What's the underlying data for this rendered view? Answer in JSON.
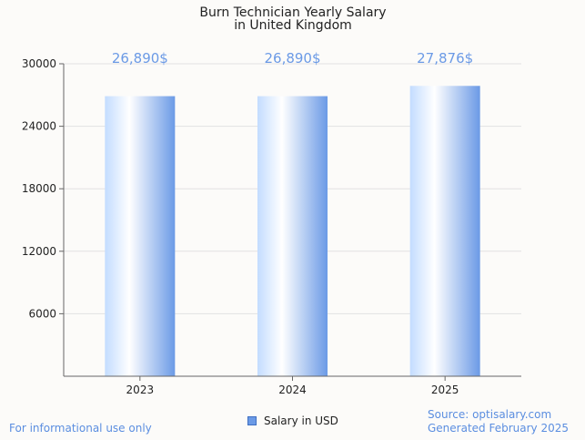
{
  "chart_data": {
    "type": "bar",
    "title_line1": "Burn Technician Yearly Salary",
    "title_line2": "in United Kingdom",
    "categories": [
      "2023",
      "2024",
      "2025"
    ],
    "values": [
      26890,
      26890,
      27876
    ],
    "value_labels": [
      "26,890$",
      "26,890$",
      "27,876$"
    ],
    "yticks": [
      6000,
      12000,
      18000,
      24000,
      30000
    ],
    "ytick_labels": [
      "6000",
      "12000",
      "18000",
      "24000",
      "30000"
    ],
    "ylim": [
      0,
      30000
    ],
    "legend": "Salary in USD",
    "colors": {
      "bar_light": "#d6ebff",
      "bar_mid": "#ffffff",
      "bar_dark": "#6b9ae6",
      "label": "#6b9ae6"
    }
  },
  "footer": {
    "left": "For informational use only",
    "source": "Source: optisalary.com",
    "generated": "Generated February 2025"
  }
}
